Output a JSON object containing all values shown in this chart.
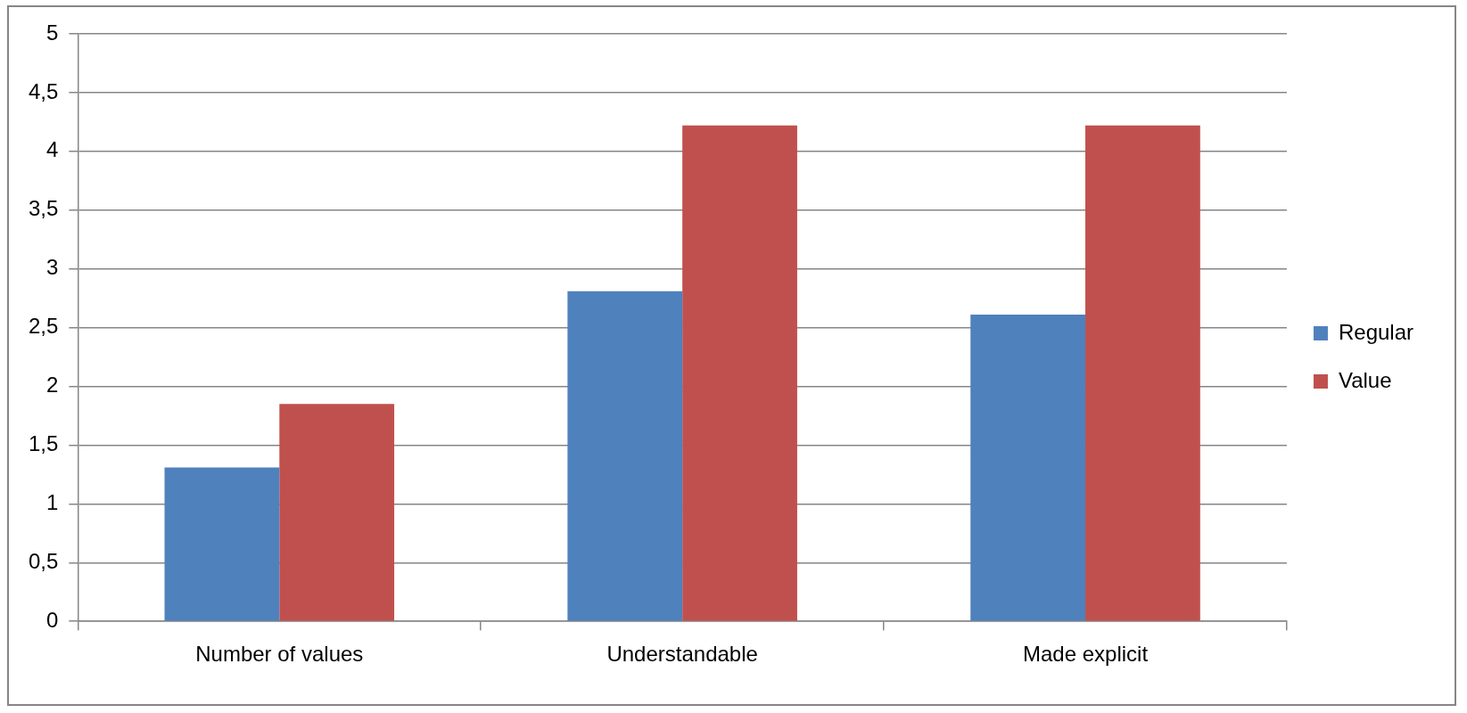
{
  "chart_data": {
    "type": "bar",
    "categories": [
      "Number of values",
      "Understandable",
      "Made explicit"
    ],
    "series": [
      {
        "name": "Regular",
        "color": "#4f81bd",
        "values": [
          1.31,
          2.81,
          2.61
        ]
      },
      {
        "name": "Value",
        "color": "#c0504d",
        "values": [
          1.85,
          4.22,
          4.22
        ]
      }
    ],
    "ylim": [
      0,
      5
    ],
    "yticks": [
      0,
      {
        "value": 0.5,
        "label": "0,5"
      },
      1,
      {
        "value": 1.5,
        "label": "1,5"
      },
      2,
      {
        "value": 2.5,
        "label": "2,5"
      },
      3,
      {
        "value": 3.5,
        "label": "3,5"
      },
      4,
      {
        "value": 4.5,
        "label": "4,5"
      },
      5
    ],
    "grid": "y",
    "legend": "right"
  }
}
